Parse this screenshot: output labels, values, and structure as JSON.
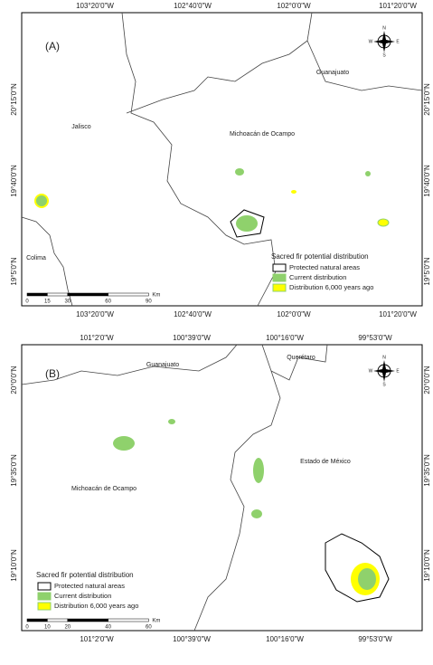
{
  "panels": [
    {
      "label": "(A)",
      "top_labels": [
        "103°20'0\"W",
        "102°40'0\"W",
        "102°0'0\"W",
        "101°20'0\"W"
      ],
      "bottom_labels": [
        "103°20'0\"W",
        "102°40'0\"W",
        "102°0'0\"W",
        "101°20'0\"W"
      ],
      "left_labels": [
        "20°15'0\"N",
        "19°40'0\"N",
        "19°5'0\"N"
      ],
      "right_labels": [
        "20°15'0\"N",
        "19°40'0\"N",
        "19°5'0\"N"
      ],
      "places": [
        "Guanajuato",
        "Jalisco",
        "Michoacán de Ocampo",
        "Colima"
      ],
      "legend": {
        "title": "Sacred fir potential distribution",
        "items": [
          "Protected natural areas",
          "Current distribution",
          "Distribution 6,000 years ago"
        ]
      },
      "scale": {
        "ticks": [
          "0",
          "15",
          "30",
          "60",
          "90"
        ],
        "unit": "Km"
      },
      "compass": {
        "n": "N",
        "s": "S",
        "e": "E",
        "w": "W"
      }
    },
    {
      "label": "(B)",
      "top_labels": [
        "101°2'0\"W",
        "100°39'0\"W",
        "100°16'0\"W",
        "99°53'0\"W"
      ],
      "bottom_labels": [
        "101°2'0\"W",
        "100°39'0\"W",
        "100°16'0\"W",
        "99°53'0\"W"
      ],
      "left_labels": [
        "20°0'0\"N",
        "19°35'0\"N",
        "19°10'0\"N"
      ],
      "right_labels": [
        "20°0'0\"N",
        "19°35'0\"N",
        "19°10'0\"N"
      ],
      "places": [
        "Guanajuato",
        "Querétaro",
        "Estado de México",
        "Michoacán de Ocampo"
      ],
      "legend": {
        "title": "Sacred fir potential distribution",
        "items": [
          "Protected natural areas",
          "Current distribution",
          "Distribution 6,000 years ago"
        ]
      },
      "scale": {
        "ticks": [
          "0",
          "10",
          "20",
          "40",
          "60"
        ],
        "unit": "Km"
      },
      "compass": {
        "n": "N",
        "s": "S",
        "e": "E",
        "w": "W"
      }
    }
  ]
}
